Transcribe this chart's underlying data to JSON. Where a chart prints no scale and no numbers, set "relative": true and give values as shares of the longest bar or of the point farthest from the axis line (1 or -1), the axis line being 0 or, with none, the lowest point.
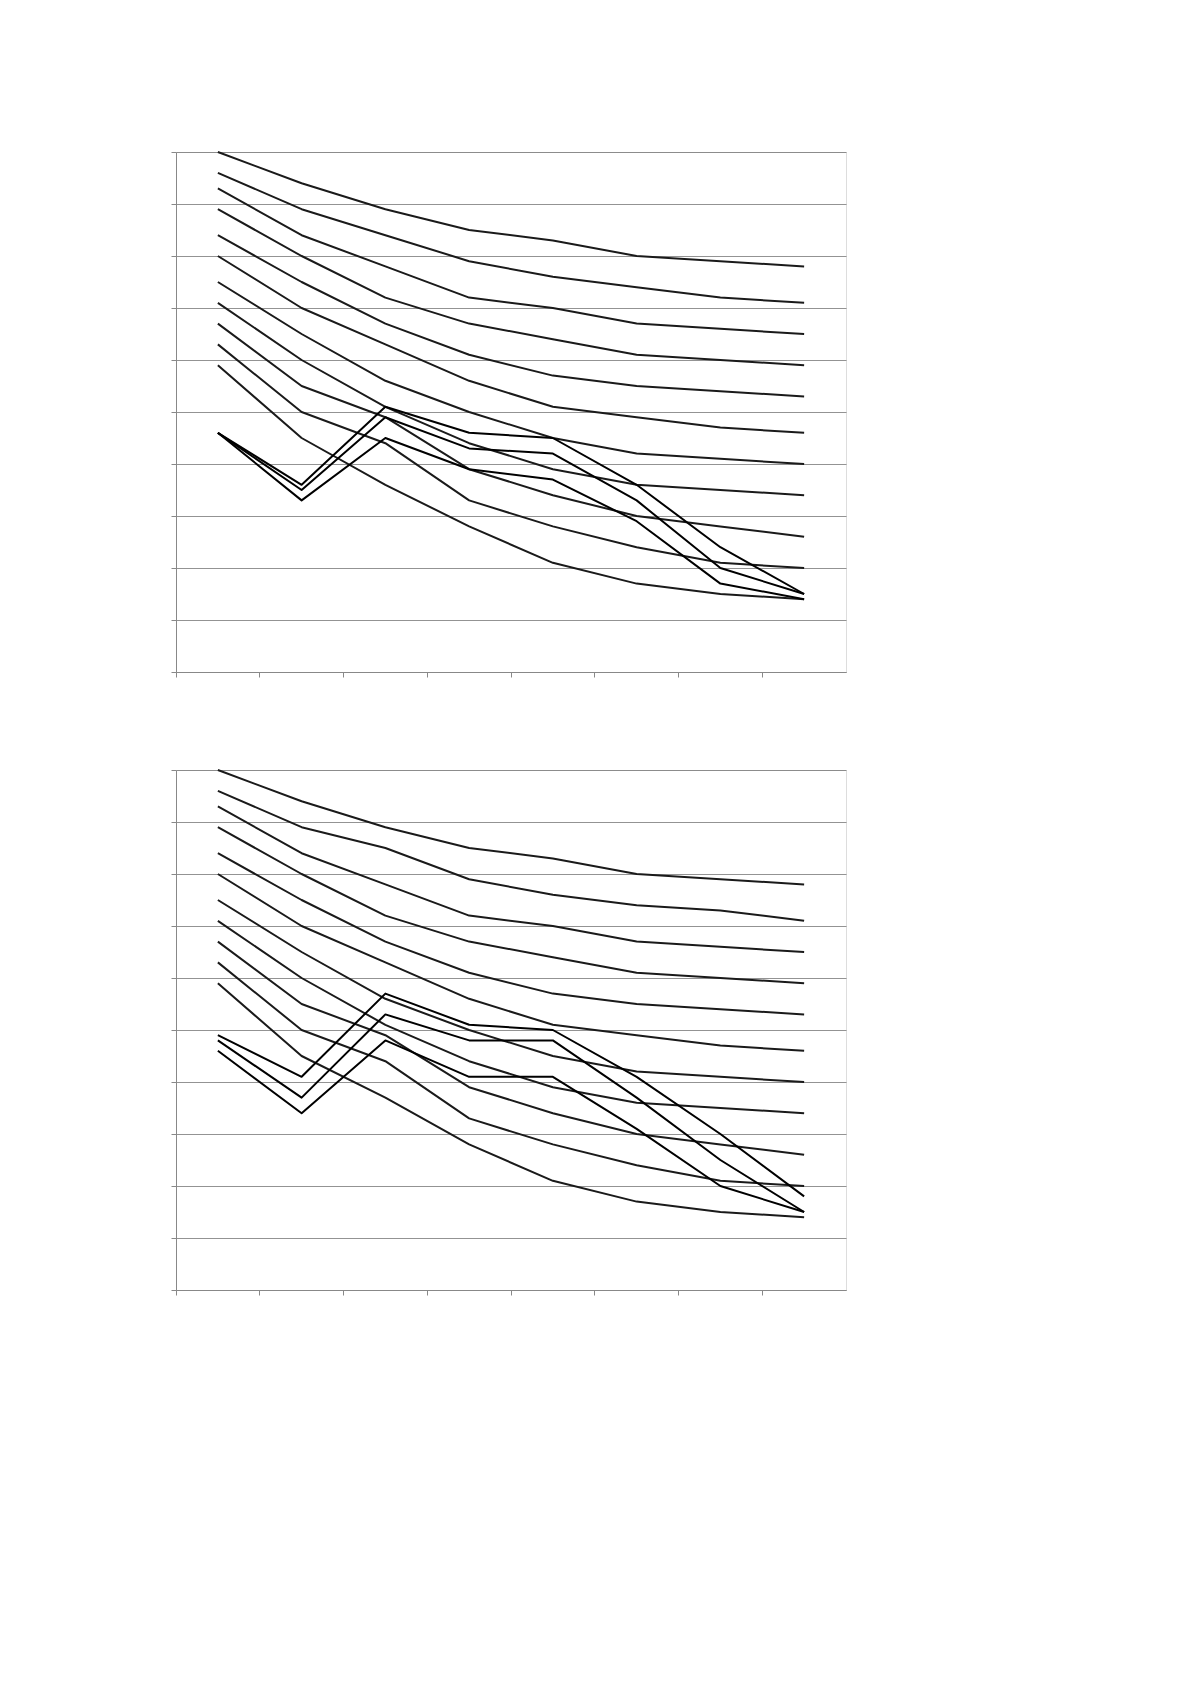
{
  "chart_data": [
    {
      "type": "line",
      "relative": true,
      "grid": "y",
      "tick_labels": false,
      "categories": [
        null,
        null,
        null,
        null,
        null,
        null,
        null,
        null
      ],
      "series": [
        {
          "color": "#1a1a1a",
          "values": [
            1.0,
            0.94,
            0.89,
            0.85,
            0.83,
            0.8,
            0.79,
            0.78
          ]
        },
        {
          "color": "#1a1a1a",
          "values": [
            0.96,
            0.89,
            0.84,
            0.79,
            0.76,
            0.74,
            0.72,
            0.71
          ]
        },
        {
          "color": "#1a1a1a",
          "values": [
            0.93,
            0.84,
            0.78,
            0.72,
            0.7,
            0.67,
            0.66,
            0.65
          ]
        },
        {
          "color": "#1a1a1a",
          "values": [
            0.89,
            0.8,
            0.72,
            0.67,
            0.64,
            0.61,
            0.6,
            0.59
          ]
        },
        {
          "color": "#1a1a1a",
          "values": [
            0.84,
            0.75,
            0.67,
            0.61,
            0.57,
            0.55,
            0.54,
            0.53
          ]
        },
        {
          "color": "#1a1a1a",
          "values": [
            0.8,
            0.7,
            0.63,
            0.56,
            0.51,
            0.49,
            0.47,
            0.46
          ]
        },
        {
          "color": "#1a1a1a",
          "values": [
            0.75,
            0.65,
            0.56,
            0.5,
            0.45,
            0.42,
            0.41,
            0.4
          ]
        },
        {
          "color": "#1a1a1a",
          "values": [
            0.71,
            0.6,
            0.51,
            0.44,
            0.39,
            0.36,
            0.35,
            0.34
          ]
        },
        {
          "color": "#1a1a1a",
          "values": [
            0.67,
            0.55,
            0.49,
            0.39,
            0.34,
            0.3,
            0.28,
            0.26
          ]
        },
        {
          "color": "#1a1a1a",
          "values": [
            0.63,
            0.5,
            0.44,
            0.33,
            0.28,
            0.24,
            0.21,
            0.2
          ]
        },
        {
          "color": "#1a1a1a",
          "values": [
            0.59,
            0.45,
            0.36,
            0.28,
            0.21,
            0.17,
            0.15,
            0.14
          ]
        },
        {
          "color": "#000000",
          "values": [
            0.46,
            0.36,
            0.51,
            0.46,
            0.45,
            0.36,
            0.24,
            0.15
          ]
        },
        {
          "color": "#000000",
          "values": [
            0.46,
            0.35,
            0.49,
            0.43,
            0.42,
            0.33,
            0.2,
            0.15
          ]
        },
        {
          "color": "#000000",
          "values": [
            0.46,
            0.33,
            0.45,
            0.39,
            0.37,
            0.29,
            0.17,
            0.14
          ]
        }
      ]
    },
    {
      "type": "line",
      "relative": true,
      "grid": "y",
      "tick_labels": false,
      "categories": [
        null,
        null,
        null,
        null,
        null,
        null,
        null,
        null
      ],
      "series": [
        {
          "color": "#1a1a1a",
          "values": [
            1.0,
            0.94,
            0.89,
            0.85,
            0.83,
            0.8,
            0.79,
            0.78
          ]
        },
        {
          "color": "#1a1a1a",
          "values": [
            0.96,
            0.89,
            0.85,
            0.79,
            0.76,
            0.74,
            0.73,
            0.71
          ]
        },
        {
          "color": "#1a1a1a",
          "values": [
            0.93,
            0.84,
            0.78,
            0.72,
            0.7,
            0.67,
            0.66,
            0.65
          ]
        },
        {
          "color": "#1a1a1a",
          "values": [
            0.89,
            0.8,
            0.72,
            0.67,
            0.64,
            0.61,
            0.6,
            0.59
          ]
        },
        {
          "color": "#1a1a1a",
          "values": [
            0.84,
            0.75,
            0.67,
            0.61,
            0.57,
            0.55,
            0.54,
            0.53
          ]
        },
        {
          "color": "#1a1a1a",
          "values": [
            0.8,
            0.7,
            0.63,
            0.56,
            0.51,
            0.49,
            0.47,
            0.46
          ]
        },
        {
          "color": "#1a1a1a",
          "values": [
            0.75,
            0.65,
            0.56,
            0.5,
            0.45,
            0.42,
            0.41,
            0.4
          ]
        },
        {
          "color": "#1a1a1a",
          "values": [
            0.71,
            0.6,
            0.51,
            0.44,
            0.39,
            0.36,
            0.35,
            0.34
          ]
        },
        {
          "color": "#1a1a1a",
          "values": [
            0.67,
            0.55,
            0.49,
            0.39,
            0.34,
            0.3,
            0.28,
            0.26
          ]
        },
        {
          "color": "#1a1a1a",
          "values": [
            0.63,
            0.5,
            0.44,
            0.33,
            0.28,
            0.24,
            0.21,
            0.2
          ]
        },
        {
          "color": "#1a1a1a",
          "values": [
            0.59,
            0.45,
            0.37,
            0.28,
            0.21,
            0.17,
            0.15,
            0.14
          ]
        },
        {
          "color": "#000000",
          "values": [
            0.49,
            0.41,
            0.57,
            0.51,
            0.5,
            0.41,
            0.3,
            0.18
          ]
        },
        {
          "color": "#000000",
          "values": [
            0.48,
            0.37,
            0.53,
            0.48,
            0.48,
            0.37,
            0.25,
            0.15
          ]
        },
        {
          "color": "#000000",
          "values": [
            0.46,
            0.34,
            0.48,
            0.41,
            0.41,
            0.31,
            0.2,
            0.15
          ]
        }
      ]
    }
  ]
}
